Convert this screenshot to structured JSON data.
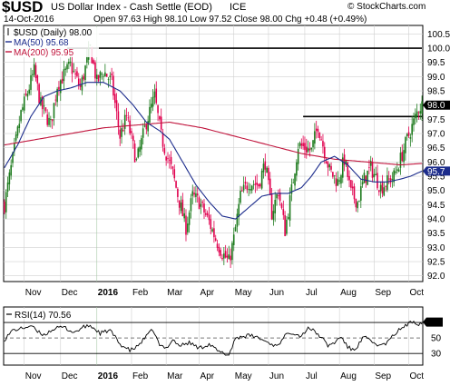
{
  "header": {
    "symbol": "$USD",
    "name": "US Dollar Index - Cash Settle (EOD)",
    "exchange": "ICE",
    "date": "14-Oct-2016",
    "ohlc": "Open 97.63  High 98.10  Low 97.52  Close 98.00  Chg +0.48 (+0.49%)",
    "watermark": "© StockCharts.com"
  },
  "colors": {
    "price_up": "#1e7b1e",
    "price_down": "#e0004e",
    "ma50": "#1c2c8c",
    "ma200": "#c0143c",
    "line_black": "#000000",
    "grid": "#d0d0d0",
    "rsi": "#000000"
  },
  "chart_data": [
    {
      "type": "candlestick",
      "legend": [
        "$USD (Daily) 98.00",
        "MA(50) 95.68",
        "MA(200) 95.95"
      ],
      "ylim": [
        91.8,
        100.8
      ],
      "yticks": [
        92.0,
        92.5,
        93.0,
        93.5,
        94.0,
        94.5,
        95.0,
        95.5,
        96.0,
        96.5,
        97.0,
        97.5,
        98.0,
        98.5,
        99.0,
        99.5,
        100.0,
        100.5
      ],
      "x_labels": [
        "Nov",
        "Dec",
        "2016",
        "Feb",
        "Mar",
        "Apr",
        "May",
        "Jun",
        "Jul",
        "Aug",
        "Sep",
        "Oct"
      ],
      "x_label_pos": [
        12,
        34,
        56,
        77,
        98,
        118,
        139,
        160,
        182,
        203,
        224,
        245
      ],
      "n_days": 254,
      "price": [
        [
          0,
          94.5
        ],
        [
          10,
          97.7
        ],
        [
          18,
          99.2
        ],
        [
          22,
          98.0
        ],
        [
          28,
          97.3
        ],
        [
          32,
          98.7
        ],
        [
          40,
          99.4
        ],
        [
          46,
          98.6
        ],
        [
          52,
          100.0
        ],
        [
          56,
          98.8
        ],
        [
          60,
          99.2
        ],
        [
          65,
          98.8
        ],
        [
          70,
          96.9
        ],
        [
          74,
          97.6
        ],
        [
          80,
          96.0
        ],
        [
          86,
          97.4
        ],
        [
          91,
          98.3
        ],
        [
          95,
          96.9
        ],
        [
          98,
          96.3
        ],
        [
          102,
          95.6
        ],
        [
          106,
          94.6
        ],
        [
          110,
          93.7
        ],
        [
          114,
          94.8
        ],
        [
          118,
          94.6
        ],
        [
          124,
          93.9
        ],
        [
          128,
          93.3
        ],
        [
          132,
          92.8
        ],
        [
          136,
          92.5
        ],
        [
          139,
          93.3
        ],
        [
          143,
          94.8
        ],
        [
          148,
          95.3
        ],
        [
          154,
          95.2
        ],
        [
          158,
          96.0
        ],
        [
          162,
          94.2
        ],
        [
          166,
          95.0
        ],
        [
          170,
          93.6
        ],
        [
          174,
          95.0
        ],
        [
          178,
          96.6
        ],
        [
          182,
          96.5
        ],
        [
          186,
          96.4
        ],
        [
          190,
          97.3
        ],
        [
          193,
          96.6
        ],
        [
          197,
          95.7
        ],
        [
          202,
          95.3
        ],
        [
          206,
          96.1
        ],
        [
          210,
          94.9
        ],
        [
          214,
          94.6
        ],
        [
          218,
          95.4
        ],
        [
          222,
          95.8
        ],
        [
          228,
          95.1
        ],
        [
          232,
          95.3
        ],
        [
          236,
          95.5
        ],
        [
          240,
          96.1
        ],
        [
          244,
          96.8
        ],
        [
          248,
          97.4
        ],
        [
          251,
          97.9
        ],
        [
          253,
          98.0
        ]
      ],
      "ma50": [
        [
          0,
          95.8
        ],
        [
          8,
          96.6
        ],
        [
          16,
          97.6
        ],
        [
          24,
          98.3
        ],
        [
          32,
          98.5
        ],
        [
          40,
          98.6
        ],
        [
          50,
          98.8
        ],
        [
          60,
          98.8
        ],
        [
          70,
          98.5
        ],
        [
          78,
          98.0
        ],
        [
          86,
          97.4
        ],
        [
          94,
          97.1
        ],
        [
          100,
          96.8
        ],
        [
          108,
          96.0
        ],
        [
          116,
          95.2
        ],
        [
          124,
          94.6
        ],
        [
          132,
          94.1
        ],
        [
          140,
          94.0
        ],
        [
          148,
          94.4
        ],
        [
          156,
          94.8
        ],
        [
          164,
          94.9
        ],
        [
          172,
          94.9
        ],
        [
          180,
          95.1
        ],
        [
          186,
          95.5
        ],
        [
          192,
          96.0
        ],
        [
          200,
          96.2
        ],
        [
          208,
          95.9
        ],
        [
          216,
          95.4
        ],
        [
          224,
          95.3
        ],
        [
          232,
          95.3
        ],
        [
          240,
          95.4
        ],
        [
          246,
          95.5
        ],
        [
          253,
          95.68
        ]
      ],
      "ma200": [
        [
          0,
          96.6
        ],
        [
          20,
          96.8
        ],
        [
          40,
          97.0
        ],
        [
          60,
          97.2
        ],
        [
          80,
          97.3
        ],
        [
          100,
          97.4
        ],
        [
          120,
          97.2
        ],
        [
          140,
          96.9
        ],
        [
          160,
          96.6
        ],
        [
          180,
          96.3
        ],
        [
          200,
          96.1
        ],
        [
          220,
          96.0
        ],
        [
          240,
          95.9
        ],
        [
          253,
          95.95
        ]
      ],
      "resistance": [
        {
          "y": 100.0,
          "x_start": 38,
          "x_end": 253
        },
        {
          "y": 97.6,
          "x_start": 181,
          "x_end": 253
        }
      ],
      "last_price": 98.0,
      "last_ma50": 95.68
    },
    {
      "type": "line",
      "legend": [
        "RSI(14) 70.56"
      ],
      "ylim": [
        15,
        90
      ],
      "yticks": [
        30,
        50,
        70
      ],
      "ref_lines": [
        30,
        50,
        70
      ],
      "x_labels": [
        "Nov",
        "Dec",
        "2016",
        "Feb",
        "Mar",
        "Apr",
        "May",
        "Jun",
        "Jul",
        "Aug",
        "Sep",
        "Oct"
      ],
      "rsi": [
        [
          0,
          48
        ],
        [
          5,
          60
        ],
        [
          10,
          62
        ],
        [
          16,
          66
        ],
        [
          20,
          58
        ],
        [
          24,
          54
        ],
        [
          30,
          62
        ],
        [
          36,
          64
        ],
        [
          42,
          57
        ],
        [
          48,
          64
        ],
        [
          52,
          66
        ],
        [
          58,
          56
        ],
        [
          64,
          60
        ],
        [
          70,
          42
        ],
        [
          76,
          34
        ],
        [
          80,
          38
        ],
        [
          86,
          52
        ],
        [
          90,
          61
        ],
        [
          94,
          40
        ],
        [
          98,
          37
        ],
        [
          102,
          48
        ],
        [
          106,
          40
        ],
        [
          112,
          44
        ],
        [
          118,
          37
        ],
        [
          124,
          42
        ],
        [
          130,
          32
        ],
        [
          136,
          28
        ],
        [
          140,
          50
        ],
        [
          144,
          52
        ],
        [
          148,
          53
        ],
        [
          152,
          52
        ],
        [
          156,
          48
        ],
        [
          160,
          44
        ],
        [
          164,
          40
        ],
        [
          168,
          46
        ],
        [
          172,
          58
        ],
        [
          176,
          56
        ],
        [
          180,
          52
        ],
        [
          184,
          64
        ],
        [
          188,
          58
        ],
        [
          192,
          51
        ],
        [
          196,
          40
        ],
        [
          200,
          44
        ],
        [
          204,
          52
        ],
        [
          208,
          38
        ],
        [
          212,
          34
        ],
        [
          218,
          52
        ],
        [
          222,
          45
        ],
        [
          228,
          40
        ],
        [
          232,
          44
        ],
        [
          236,
          54
        ],
        [
          240,
          62
        ],
        [
          244,
          67
        ],
        [
          248,
          72
        ],
        [
          251,
          68
        ],
        [
          253,
          70.56
        ]
      ],
      "last_value": 70.56
    }
  ]
}
